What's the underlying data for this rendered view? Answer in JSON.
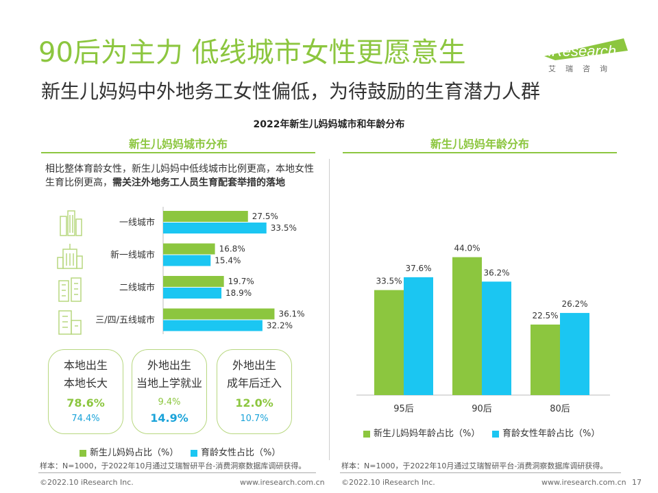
{
  "header": {
    "title": "90后为主力 低线城市女性更愿意生",
    "subtitle": "新生儿妈妈中外地务工女性偏低，为待鼓励的生育潜力人群",
    "logo_text": "iResearch",
    "logo_cn": "艾瑞咨询"
  },
  "chart_title": "2022年新生儿妈妈城市和年龄分布",
  "colors": {
    "green": "#8cc63f",
    "blue": "#1bc6f2",
    "text": "#333333"
  },
  "left_panel": {
    "section_title": "新生儿妈妈城市分布",
    "note_plain": "相比整体育龄女性，新生儿妈妈中低线城市比例更高，本地女性生育比例更高，",
    "note_bold": "需关注外地务工人员生育配套举措的落地",
    "legend": [
      "新生儿妈妈占比（%）",
      "育龄女性占比（%）"
    ],
    "source": "样本：N=1000，于2022年10月通过艾瑞智研平台-消费洞察数据库调研获得。",
    "boxes": [
      {
        "line1": "本地出生",
        "line2": "本地长大",
        "v1": "78.6%",
        "v2": "74.4%"
      },
      {
        "line1": "外地出生",
        "line2": "当地上学就业",
        "v1": "9.4%",
        "v2": "14.9%"
      },
      {
        "line1": "外地出生",
        "line2": "成年后迁入",
        "v1": "12.0%",
        "v2": "10.7%"
      }
    ],
    "icons": [
      "skyscraper-icon",
      "office-building-icon",
      "apartment-block-icon",
      "low-rise-building-icon"
    ]
  },
  "right_panel": {
    "section_title": "新生儿妈妈年龄分布",
    "legend": [
      "新生儿妈妈年龄占比（%）",
      "育龄女性年龄占比（%）"
    ],
    "source": "样本：N=1000，于2022年10月通过艾瑞智研平台-消费洞察数据库调研获得。"
  },
  "footer": {
    "left_copyright": "©2022.10 iResearch Inc.",
    "left_url": "www.iresearch.com.cn",
    "right_copyright": "©2022.10 iResearch Inc.",
    "right_url": "www.iresearch.com.cn",
    "page_number": "17"
  },
  "chart_data": [
    {
      "type": "bar",
      "orientation": "horizontal",
      "categories": [
        "一线城市",
        "新一线城市",
        "二线城市",
        "三/四/五线城市"
      ],
      "series": [
        {
          "name": "新生儿妈妈占比（%）",
          "values": [
            27.5,
            16.8,
            19.7,
            36.1
          ]
        },
        {
          "name": "育龄女性占比（%）",
          "values": [
            33.5,
            15.4,
            18.9,
            32.2
          ]
        }
      ],
      "value_labels": [
        [
          "27.5%",
          "16.8%",
          "19.7%",
          "36.1%"
        ],
        [
          "33.5%",
          "15.4%",
          "18.9%",
          "32.2%"
        ]
      ],
      "xlim": [
        0,
        40
      ],
      "legend_position": "bottom"
    },
    {
      "type": "bar",
      "orientation": "vertical",
      "categories": [
        "95后",
        "90后",
        "80后"
      ],
      "series": [
        {
          "name": "新生儿妈妈年龄占比（%）",
          "values": [
            33.5,
            44.0,
            22.5
          ]
        },
        {
          "name": "育龄女性年龄占比（%）",
          "values": [
            37.6,
            36.2,
            26.2
          ]
        }
      ],
      "value_labels": [
        [
          "33.5%",
          "44.0%",
          "22.5%"
        ],
        [
          "37.6%",
          "36.2%",
          "26.2%"
        ]
      ],
      "ylim": [
        0,
        50
      ],
      "legend_position": "bottom"
    }
  ]
}
